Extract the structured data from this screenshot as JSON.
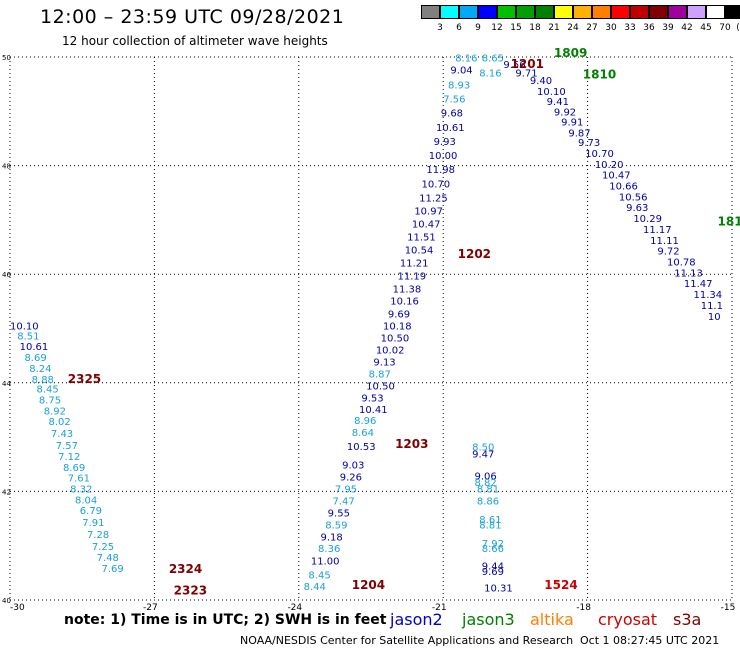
{
  "title": "12:00 – 23:59 UTC 09/28/2021",
  "subtitle": "12 hour collection of altimeter wave heights",
  "color_scale": {
    "unit": "(ft)",
    "thresholds": [
      "3",
      "6",
      "9",
      "12",
      "15",
      "18",
      "21",
      "24",
      "27",
      "30",
      "33",
      "36",
      "39",
      "42",
      "45",
      "70"
    ],
    "colors": [
      "#808080",
      "#00ffff",
      "#00a8f8",
      "#0000ff",
      "#00c000",
      "#00a000",
      "#008000",
      "#ffff00",
      "#ffb000",
      "#ff8000",
      "#ff0000",
      "#c00000",
      "#800000",
      "#a000a0",
      "#d0a0ff",
      "#ffffff",
      "#000000"
    ]
  },
  "note": "note:  1) Time is in UTC;  2) SWH is in feet",
  "legend": [
    {
      "name": "jason2",
      "color": "#0000cc"
    },
    {
      "name": "jason3",
      "color": "#008000"
    },
    {
      "name": "altika",
      "color": "#ff8000"
    },
    {
      "name": "cryosat",
      "color": "#cc0000"
    },
    {
      "name": "s3a",
      "color": "#800000"
    }
  ],
  "credit": "NOAA/NESDIS Center for Satellite Applications and Research",
  "generated": "Oct  1 08:27:45 UTC 2021",
  "colors": {
    "cyan_value": "#1aa0d8",
    "blue_value": "#0000a8",
    "time_label": "#800000",
    "green_label": "#008000",
    "grid": "#000000"
  },
  "chart_data": {
    "type": "scatter",
    "title": "12:00 – 23:59 UTC 09/28/2021",
    "xlim": [
      -30,
      -15
    ],
    "ylim": [
      40,
      50
    ],
    "x_ticks": [
      "-30",
      "-27",
      "-24",
      "-21",
      "-18",
      "-15"
    ],
    "y_ticks": [
      "40",
      "42",
      "44",
      "46",
      "48",
      "50"
    ],
    "grid": true,
    "time_labels": [
      {
        "text": "2325",
        "x": -28.8,
        "y": 44.0,
        "color": "#800000"
      },
      {
        "text": "2324",
        "x": -26.7,
        "y": 40.5,
        "color": "#800000"
      },
      {
        "text": "2323",
        "x": -26.6,
        "y": 40.1,
        "color": "#800000"
      },
      {
        "text": "1204",
        "x": -22.9,
        "y": 40.2,
        "color": "#800000"
      },
      {
        "text": "1203",
        "x": -22.0,
        "y": 42.8,
        "color": "#800000"
      },
      {
        "text": "1202",
        "x": -20.7,
        "y": 46.3,
        "color": "#800000"
      },
      {
        "text": "1201",
        "x": -19.6,
        "y": 49.8,
        "color": "#800000"
      },
      {
        "text": "1524",
        "x": -18.9,
        "y": 40.2,
        "color": "#cc0000"
      },
      {
        "text": "1809",
        "x": -18.7,
        "y": 50.0,
        "color": "#008000"
      },
      {
        "text": "1810",
        "x": -18.1,
        "y": 49.6,
        "color": "#008000"
      },
      {
        "text": "181",
        "x": -15.3,
        "y": 46.9,
        "color": "#008000"
      }
    ],
    "series": [
      {
        "name": "track-a",
        "points": [
          {
            "v": "10.10",
            "x": -30.0,
            "y": 44.98,
            "c": "b"
          },
          {
            "v": "8.51",
            "x": -29.85,
            "y": 44.8,
            "c": "c"
          },
          {
            "v": "10.61",
            "x": -29.8,
            "y": 44.6,
            "c": "b"
          },
          {
            "v": "8.69",
            "x": -29.7,
            "y": 44.4,
            "c": "c"
          },
          {
            "v": "8.24",
            "x": -29.6,
            "y": 44.2,
            "c": "c"
          },
          {
            "v": "8.88",
            "x": -29.55,
            "y": 44.0,
            "c": "c"
          },
          {
            "v": "8.45",
            "x": -29.45,
            "y": 43.82,
            "c": "c"
          },
          {
            "v": "8.75",
            "x": -29.4,
            "y": 43.62,
            "c": "c"
          },
          {
            "v": "8.92",
            "x": -29.3,
            "y": 43.42,
            "c": "c"
          },
          {
            "v": "8.02",
            "x": -29.2,
            "y": 43.22,
            "c": "c"
          },
          {
            "v": "7.43",
            "x": -29.15,
            "y": 43.0,
            "c": "c"
          },
          {
            "v": "7.57",
            "x": -29.05,
            "y": 42.78,
            "c": "c"
          },
          {
            "v": "7.12",
            "x": -29.0,
            "y": 42.58,
            "c": "c"
          },
          {
            "v": "8.69",
            "x": -28.9,
            "y": 42.38,
            "c": "c"
          },
          {
            "v": "7.61",
            "x": -28.8,
            "y": 42.18,
            "c": "c"
          },
          {
            "v": "8.32",
            "x": -28.75,
            "y": 41.98,
            "c": "c"
          },
          {
            "v": "8.04",
            "x": -28.65,
            "y": 41.78,
            "c": "c"
          },
          {
            "v": "6.79",
            "x": -28.55,
            "y": 41.58,
            "c": "c"
          },
          {
            "v": "7.91",
            "x": -28.5,
            "y": 41.36,
            "c": "c"
          },
          {
            "v": "7.28",
            "x": -28.4,
            "y": 41.14,
            "c": "c"
          },
          {
            "v": "7.25",
            "x": -28.3,
            "y": 40.92,
            "c": "c"
          },
          {
            "v": "7.48",
            "x": -28.2,
            "y": 40.72,
            "c": "c"
          },
          {
            "v": "7.69",
            "x": -28.1,
            "y": 40.52,
            "c": "c"
          }
        ]
      },
      {
        "name": "track-b",
        "points": [
          {
            "v": "8.44",
            "x": -23.9,
            "y": 40.18,
            "c": "c"
          },
          {
            "v": "8.45",
            "x": -23.8,
            "y": 40.4,
            "c": "c"
          },
          {
            "v": "11.00",
            "x": -23.75,
            "y": 40.65,
            "c": "b"
          },
          {
            "v": "8.36",
            "x": -23.6,
            "y": 40.88,
            "c": "c"
          },
          {
            "v": "9.18",
            "x": -23.55,
            "y": 41.1,
            "c": "b"
          },
          {
            "v": "8.59",
            "x": -23.45,
            "y": 41.32,
            "c": "c"
          },
          {
            "v": "9.55",
            "x": -23.4,
            "y": 41.54,
            "c": "b"
          },
          {
            "v": "7.47",
            "x": -23.3,
            "y": 41.76,
            "c": "c"
          },
          {
            "v": "7.95",
            "x": -23.25,
            "y": 41.98,
            "c": "c"
          },
          {
            "v": "9.26",
            "x": -23.15,
            "y": 42.2,
            "c": "b"
          },
          {
            "v": "9.03",
            "x": -23.1,
            "y": 42.42,
            "c": "b"
          },
          {
            "v": "10.53",
            "x": -23.0,
            "y": 42.76,
            "c": "b"
          },
          {
            "v": "8.64",
            "x": -22.9,
            "y": 43.02,
            "c": "c"
          },
          {
            "v": "8.96",
            "x": -22.85,
            "y": 43.24,
            "c": "c"
          },
          {
            "v": "10.41",
            "x": -22.75,
            "y": 43.44,
            "c": "b"
          },
          {
            "v": "9.53",
            "x": -22.7,
            "y": 43.66,
            "c": "b"
          },
          {
            "v": "10.50",
            "x": -22.6,
            "y": 43.88,
            "c": "b"
          },
          {
            "v": "8.87",
            "x": -22.55,
            "y": 44.1,
            "c": "c"
          },
          {
            "v": "9.13",
            "x": -22.45,
            "y": 44.32,
            "c": "b"
          },
          {
            "v": "10.02",
            "x": -22.4,
            "y": 44.54,
            "c": "b"
          },
          {
            "v": "10.50",
            "x": -22.3,
            "y": 44.76,
            "c": "b"
          },
          {
            "v": "10.18",
            "x": -22.25,
            "y": 44.98,
            "c": "b"
          },
          {
            "v": "9.69",
            "x": -22.15,
            "y": 45.2,
            "c": "b"
          },
          {
            "v": "10.16",
            "x": -22.1,
            "y": 45.44,
            "c": "b"
          },
          {
            "v": "11.38",
            "x": -22.05,
            "y": 45.66,
            "c": "b"
          },
          {
            "v": "11.19",
            "x": -21.95,
            "y": 45.9,
            "c": "b"
          },
          {
            "v": "11.21",
            "x": -21.9,
            "y": 46.14,
            "c": "b"
          },
          {
            "v": "10.54",
            "x": -21.8,
            "y": 46.38,
            "c": "b"
          },
          {
            "v": "11.51",
            "x": -21.75,
            "y": 46.62,
            "c": "b"
          },
          {
            "v": "10.47",
            "x": -21.65,
            "y": 46.86,
            "c": "b"
          },
          {
            "v": "10.97",
            "x": -21.6,
            "y": 47.1,
            "c": "b"
          },
          {
            "v": "11.25",
            "x": -21.5,
            "y": 47.34,
            "c": "b"
          },
          {
            "v": "10.70",
            "x": -21.45,
            "y": 47.6,
            "c": "b"
          },
          {
            "v": "11.98",
            "x": -21.35,
            "y": 47.86,
            "c": "b"
          },
          {
            "v": "10.00",
            "x": -21.3,
            "y": 48.12,
            "c": "b"
          },
          {
            "v": "9.93",
            "x": -21.2,
            "y": 48.38,
            "c": "b"
          },
          {
            "v": "10.61",
            "x": -21.15,
            "y": 48.64,
            "c": "b"
          },
          {
            "v": "9.68",
            "x": -21.05,
            "y": 48.9,
            "c": "b"
          },
          {
            "v": "7.56",
            "x": -21.0,
            "y": 49.16,
            "c": "c"
          },
          {
            "v": "8.93",
            "x": -20.9,
            "y": 49.42,
            "c": "c"
          },
          {
            "v": "9.04",
            "x": -20.85,
            "y": 49.7,
            "c": "b"
          },
          {
            "v": "8.16",
            "x": -20.75,
            "y": 49.92,
            "c": "c"
          }
        ]
      },
      {
        "name": "track-c",
        "points": [
          {
            "v": "8.65",
            "x": -20.2,
            "y": 49.92,
            "c": "c"
          },
          {
            "v": "8.16",
            "x": -20.25,
            "y": 49.64,
            "c": "c"
          },
          {
            "v": "9.56",
            "x": -19.75,
            "y": 49.8,
            "c": "b"
          },
          {
            "v": "9.71",
            "x": -19.5,
            "y": 49.64,
            "c": "b"
          },
          {
            "v": "9.40",
            "x": -19.2,
            "y": 49.5,
            "c": "b"
          },
          {
            "v": "10.10",
            "x": -19.05,
            "y": 49.3,
            "c": "b"
          },
          {
            "v": "9.41",
            "x": -18.85,
            "y": 49.12,
            "c": "b"
          },
          {
            "v": "9.92",
            "x": -18.7,
            "y": 48.92,
            "c": "b"
          },
          {
            "v": "9.91",
            "x": -18.55,
            "y": 48.74,
            "c": "b"
          },
          {
            "v": "9.87",
            "x": -18.4,
            "y": 48.54,
            "c": "b"
          },
          {
            "v": "9.73",
            "x": -18.2,
            "y": 48.36,
            "c": "b"
          },
          {
            "v": "10.70",
            "x": -18.05,
            "y": 48.16,
            "c": "b"
          },
          {
            "v": "10.20",
            "x": -17.85,
            "y": 47.96,
            "c": "b"
          },
          {
            "v": "10.47",
            "x": -17.7,
            "y": 47.76,
            "c": "b"
          },
          {
            "v": "10.66",
            "x": -17.55,
            "y": 47.56,
            "c": "b"
          },
          {
            "v": "10.56",
            "x": -17.35,
            "y": 47.36,
            "c": "b"
          },
          {
            "v": "9.63",
            "x": -17.2,
            "y": 47.16,
            "c": "b"
          },
          {
            "v": "10.29",
            "x": -17.05,
            "y": 46.96,
            "c": "b"
          },
          {
            "v": "11.17",
            "x": -16.85,
            "y": 46.76,
            "c": "b"
          },
          {
            "v": "11.11",
            "x": -16.7,
            "y": 46.56,
            "c": "b"
          },
          {
            "v": "9.72",
            "x": -16.55,
            "y": 46.36,
            "c": "b"
          },
          {
            "v": "10.78",
            "x": -16.35,
            "y": 46.16,
            "c": "b"
          },
          {
            "v": "11.13",
            "x": -16.2,
            "y": 45.96,
            "c": "b"
          },
          {
            "v": "11.47",
            "x": -16.0,
            "y": 45.76,
            "c": "b"
          },
          {
            "v": "11.34",
            "x": -15.8,
            "y": 45.56,
            "c": "b"
          },
          {
            "v": "11.1",
            "x": -15.65,
            "y": 45.36,
            "c": "b"
          },
          {
            "v": "10",
            "x": -15.5,
            "y": 45.16,
            "c": "b"
          }
        ]
      },
      {
        "name": "track-d",
        "points": [
          {
            "v": "8.50",
            "x": -20.4,
            "y": 42.75,
            "c": "c"
          },
          {
            "v": "9.47",
            "x": -20.4,
            "y": 42.62,
            "c": "b"
          },
          {
            "v": "9.06",
            "x": -20.35,
            "y": 42.22,
            "c": "b"
          },
          {
            "v": "8.82",
            "x": -20.35,
            "y": 42.1,
            "c": "c"
          },
          {
            "v": "8.81",
            "x": -20.3,
            "y": 41.98,
            "c": "c"
          },
          {
            "v": "8.86",
            "x": -20.3,
            "y": 41.76,
            "c": "c"
          },
          {
            "v": "8.61",
            "x": -20.25,
            "y": 41.42,
            "c": "c"
          },
          {
            "v": "8.81",
            "x": -20.25,
            "y": 41.32,
            "c": "c"
          },
          {
            "v": "7.92",
            "x": -20.2,
            "y": 40.98,
            "c": "c"
          },
          {
            "v": "8.66",
            "x": -20.2,
            "y": 40.88,
            "c": "c"
          },
          {
            "v": "9.44",
            "x": -20.2,
            "y": 40.56,
            "c": "b"
          },
          {
            "v": "9.69",
            "x": -20.2,
            "y": 40.46,
            "c": "b"
          },
          {
            "v": "10.31",
            "x": -20.15,
            "y": 40.16,
            "c": "b"
          }
        ]
      }
    ]
  }
}
